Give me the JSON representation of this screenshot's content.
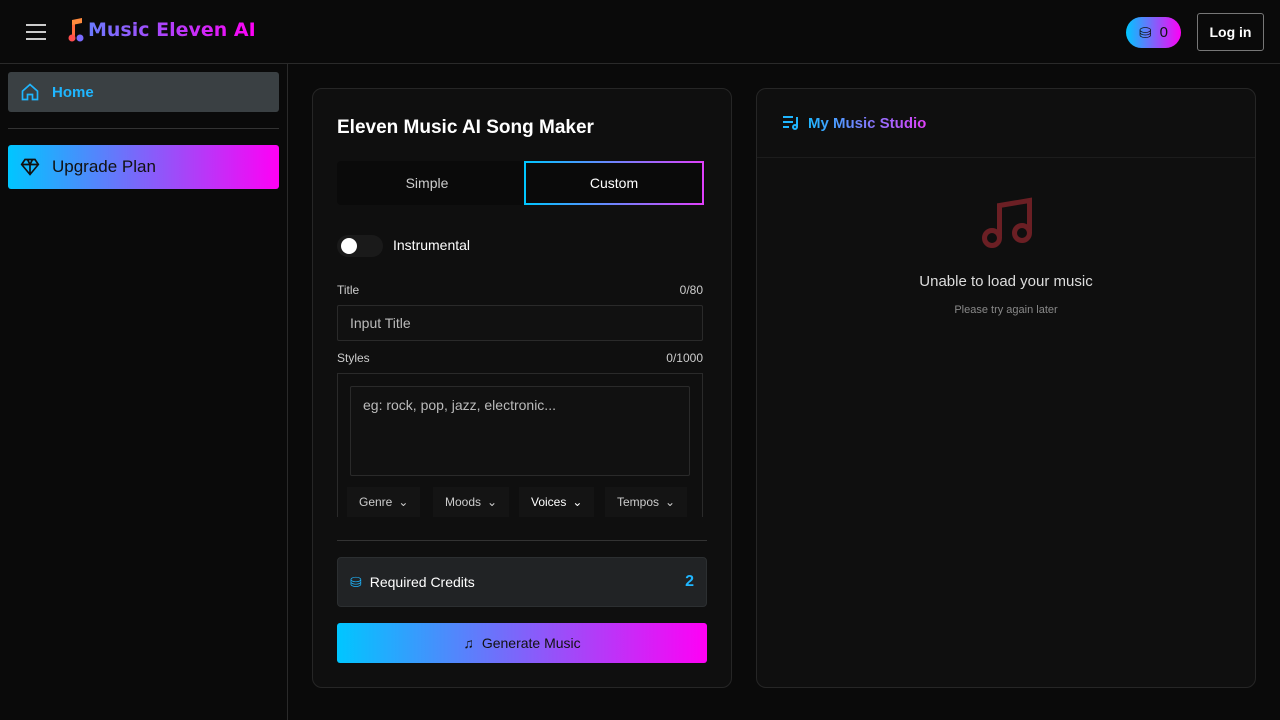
{
  "header": {
    "app_name": "Music Eleven AI",
    "credits": "0",
    "login_label": "Log in"
  },
  "sidebar": {
    "items": [
      {
        "label": "Home"
      },
      {
        "label": "Upgrade Plan"
      }
    ]
  },
  "maker": {
    "title": "Eleven Music AI Song Maker",
    "tabs": [
      {
        "label": "Simple"
      },
      {
        "label": "Custom",
        "active": true
      }
    ],
    "instrumental_label": "Instrumental",
    "instrumental_on": false,
    "title_label": "Title",
    "title_count": "0/80",
    "title_placeholder": "Input Title",
    "styles_label": "Styles",
    "styles_count": "0/1000",
    "styles_placeholder": "eg: rock, pop, jazz, electronic...",
    "chips": [
      "Genre",
      "Moods",
      "Voices",
      "Tempos"
    ],
    "required_credits_label": "Required Credits",
    "required_credits": "2",
    "generate_label": "Generate Music"
  },
  "studio": {
    "title": "My Music Studio",
    "error_title": "Unable to load your music",
    "error_sub": "Please try again later"
  },
  "colors": {
    "accent_start": "#00c6ff",
    "accent_end": "#ff00f5",
    "link": "#1fb6ff"
  }
}
